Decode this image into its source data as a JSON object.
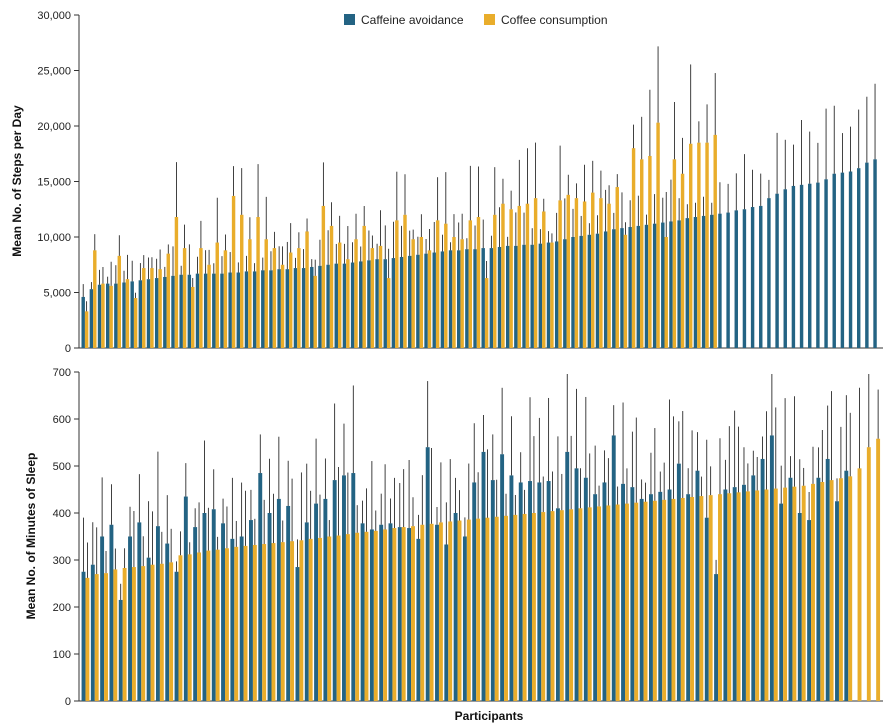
{
  "colors": {
    "caffeine_avoidance": "#236383",
    "coffee_consumption": "#E9AD2B",
    "error_bar": "#111111",
    "axis": "#333333"
  },
  "legend": {
    "series_a": "Caffeine avoidance",
    "series_b": "Coffee consumption"
  },
  "x_axis_title": "Participants",
  "chart_data": [
    {
      "type": "bar",
      "ylabel": "Mean No. of Steps per Day",
      "ylim": [
        0,
        30000
      ],
      "yticks": [
        0,
        5000,
        10000,
        15000,
        20000,
        25000,
        30000
      ],
      "ytick_labels": [
        "0",
        "5,000",
        "10,000",
        "15,000",
        "20,000",
        "25,000",
        "30,000"
      ],
      "series": [
        {
          "name": "Caffeine avoidance",
          "values": [
            4600,
            5300,
            5700,
            5800,
            5800,
            5900,
            6000,
            6100,
            6200,
            6300,
            6400,
            6500,
            6600,
            6600,
            6700,
            6700,
            6700,
            6700,
            6800,
            6800,
            6900,
            6900,
            7000,
            7000,
            7100,
            7100,
            7200,
            7200,
            7300,
            7400,
            7500,
            7600,
            7600,
            7700,
            7800,
            7900,
            8000,
            8000,
            8100,
            8200,
            8300,
            8400,
            8500,
            8600,
            8700,
            8800,
            8800,
            8900,
            8900,
            9000,
            9000,
            9100,
            9200,
            9200,
            9300,
            9300,
            9400,
            9500,
            9600,
            9800,
            10000,
            10100,
            10200,
            10300,
            10500,
            10700,
            10800,
            10900,
            11000,
            11100,
            11200,
            11300,
            11400,
            11500,
            11700,
            11800,
            11900,
            12000,
            12100,
            12200,
            12400,
            12500,
            12700,
            12800,
            13500,
            13900,
            14300,
            14600,
            14700,
            14800,
            14900,
            15200,
            15700,
            15800,
            15900,
            16200,
            16700,
            17000
          ]
        },
        {
          "name": "Coffee consumption",
          "values": [
            3300,
            8800,
            5800,
            5600,
            8300,
            6200,
            4500,
            7200,
            7200,
            7100,
            8500,
            11800,
            9000,
            5500,
            9000,
            7500,
            9500,
            8800,
            13700,
            12000,
            9800,
            11800,
            9800,
            9000,
            7500,
            8600,
            9000,
            10500,
            6500,
            12800,
            11000,
            9500,
            8000,
            9800,
            11000,
            9000,
            9200,
            6300,
            11500,
            12000,
            9800,
            10000,
            8800,
            11500,
            11200,
            10000,
            9800,
            11500,
            11800,
            6300,
            12000,
            13000,
            12500,
            12800,
            13000,
            13500,
            12300,
            9500,
            13300,
            13800,
            13500,
            13200,
            14000,
            13500,
            13000,
            14500,
            10200,
            18000,
            17000,
            17300,
            20300,
            10000,
            17000,
            15700,
            18400,
            18500,
            18500,
            19200
          ]
        }
      ]
    },
    {
      "type": "bar",
      "ylabel": "Mean No. of Minutes of Sleep",
      "ylim": [
        0,
        700
      ],
      "yticks": [
        0,
        100,
        200,
        300,
        400,
        500,
        600,
        700
      ],
      "ytick_labels": [
        "0",
        "100",
        "200",
        "300",
        "400",
        "500",
        "600",
        "700"
      ],
      "series": [
        {
          "name": "Caffeine avoidance",
          "values": [
            275,
            290,
            350,
            375,
            215,
            350,
            380,
            305,
            372,
            335,
            275,
            435,
            370,
            400,
            408,
            378,
            345,
            350,
            385,
            485,
            400,
            430,
            415,
            285,
            380,
            420,
            430,
            470,
            480,
            485,
            378,
            365,
            375,
            378,
            370,
            368,
            345,
            540,
            375,
            333,
            400,
            350,
            465,
            530,
            470,
            525,
            480,
            465,
            468,
            465,
            468,
            410,
            530,
            495,
            475,
            440,
            465,
            565,
            462,
            455,
            430,
            440,
            445,
            450,
            505,
            440,
            490,
            390,
            270,
            450,
            455,
            460,
            480,
            515,
            565,
            420,
            475,
            400,
            385,
            475,
            515,
            425,
            490
          ]
        },
        {
          "name": "Coffee consumption",
          "values": [
            262,
            270,
            272,
            280,
            283,
            285,
            287,
            290,
            292,
            295,
            310,
            312,
            316,
            320,
            322,
            325,
            328,
            330,
            332,
            334,
            336,
            338,
            340,
            342,
            345,
            347,
            350,
            352,
            355,
            358,
            360,
            362,
            365,
            368,
            370,
            372,
            375,
            377,
            380,
            382,
            384,
            386,
            388,
            390,
            392,
            394,
            396,
            398,
            400,
            402,
            404,
            406,
            408,
            410,
            412,
            414,
            416,
            418,
            420,
            422,
            424,
            426,
            428,
            430,
            432,
            434,
            436,
            438,
            440,
            442,
            444,
            446,
            448,
            450,
            452,
            454,
            456,
            458,
            462,
            466,
            470,
            474,
            478,
            495,
            540,
            558
          ]
        }
      ]
    }
  ]
}
